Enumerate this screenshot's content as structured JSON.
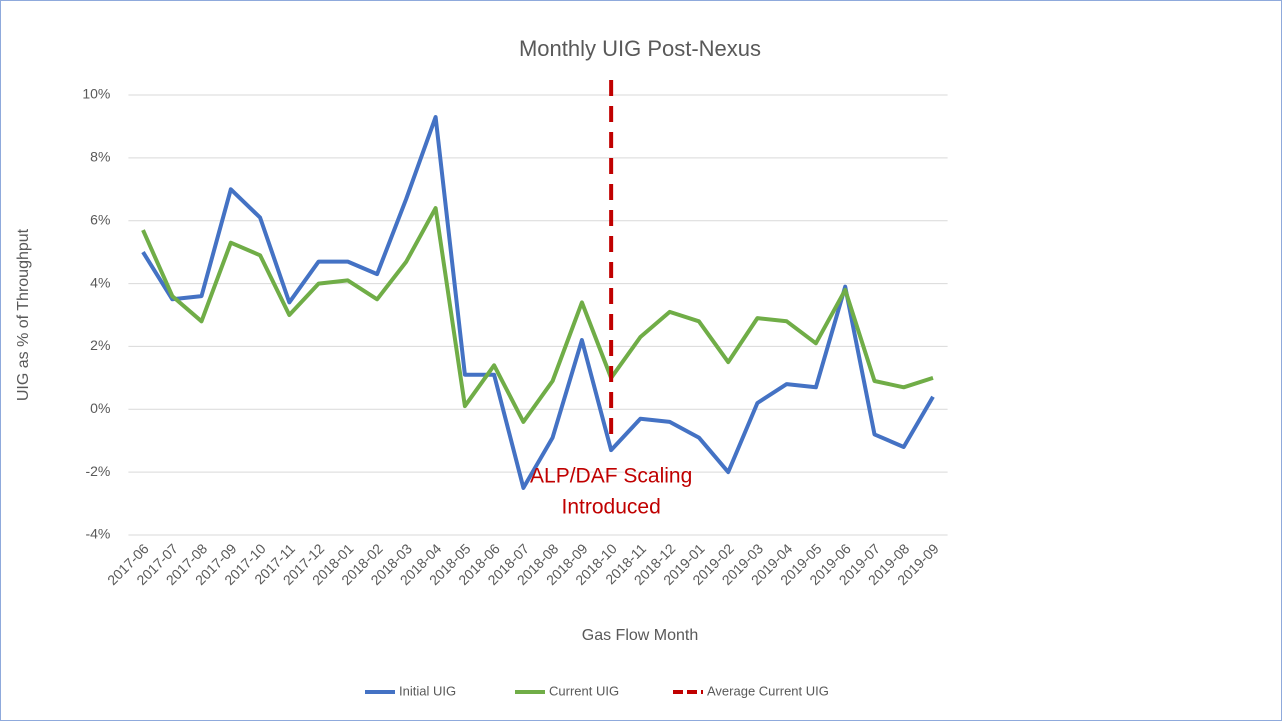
{
  "chart_data": {
    "type": "line",
    "title": "Monthly UIG Post-Nexus",
    "y_label": "UIG as % of Throughput",
    "x_label": "Gas Flow Month",
    "categories": [
      "2017-06",
      "2017-07",
      "2017-08",
      "2017-09",
      "2017-10",
      "2017-11",
      "2017-12",
      "2018-01",
      "2018-02",
      "2018-03",
      "2018-04",
      "2018-05",
      "2018-06",
      "2018-07",
      "2018-08",
      "2018-09",
      "2018-10",
      "2018-11",
      "2018-12",
      "2019-01",
      "2019-02",
      "2019-03",
      "2019-04",
      "2019-05",
      "2019-06",
      "2019-07",
      "2019-08",
      "2019-09"
    ],
    "series": [
      {
        "name": "Initial UIG",
        "color": "#4472c4",
        "values": [
          5.0,
          3.5,
          3.6,
          7.0,
          6.1,
          3.4,
          4.7,
          4.7,
          4.3,
          6.7,
          9.3,
          1.1,
          1.1,
          -2.5,
          -0.9,
          2.2,
          -1.3,
          -0.3,
          -0.4,
          -0.9,
          -2.0,
          0.2,
          0.8,
          0.7,
          3.9,
          -0.8,
          -1.2,
          0.4
        ]
      },
      {
        "name": "Current UIG",
        "color": "#70ad47",
        "values": [
          5.7,
          3.6,
          2.8,
          5.3,
          4.9,
          3.0,
          4.0,
          4.1,
          3.5,
          4.7,
          6.4,
          0.1,
          1.4,
          -0.4,
          0.9,
          3.4,
          1.0,
          2.3,
          3.1,
          2.8,
          1.5,
          2.9,
          2.8,
          2.1,
          3.8,
          0.9,
          0.7,
          1.0
        ]
      }
    ],
    "vline": {
      "name": "Average Current UIG",
      "x": "2018-10",
      "color": "#c00000"
    },
    "annotation": [
      "ALP/DAF Scaling",
      "Introduced"
    ],
    "ylim": [
      -4,
      10
    ],
    "yticks": [
      {
        "value": -4,
        "label": "-4%"
      },
      {
        "value": -2,
        "label": "-2%"
      },
      {
        "value": 0,
        "label": "0%"
      },
      {
        "value": 2,
        "label": "2%"
      },
      {
        "value": 4,
        "label": "4%"
      },
      {
        "value": 6,
        "label": "6%"
      },
      {
        "value": 8,
        "label": "8%"
      },
      {
        "value": 10,
        "label": "10%"
      }
    ],
    "grid": true,
    "legend": "bottom"
  }
}
